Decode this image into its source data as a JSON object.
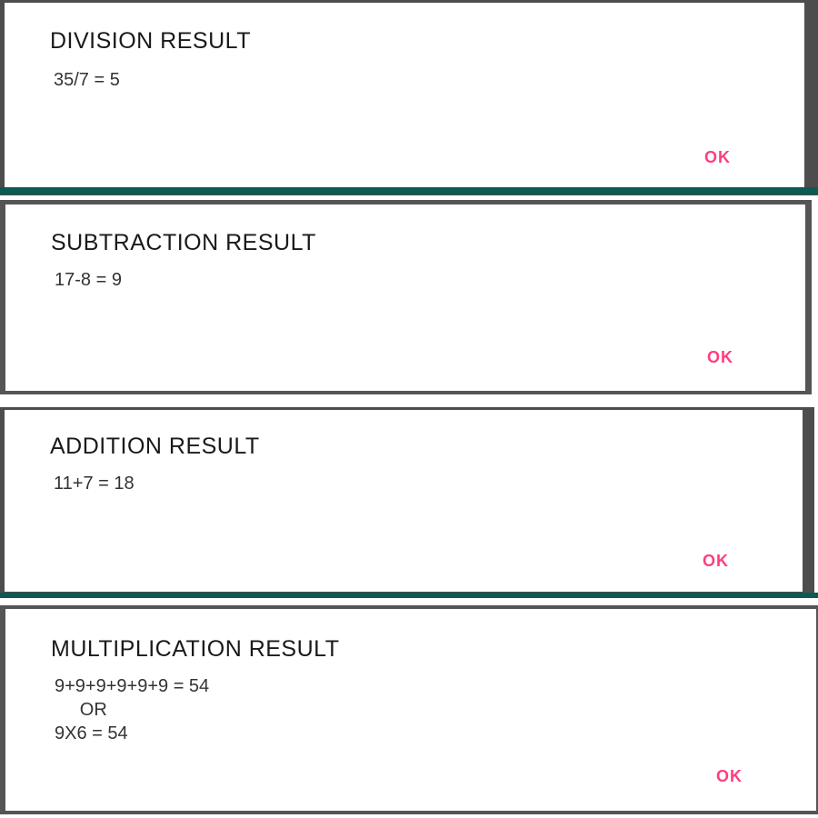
{
  "accent_color": "#ff3d7f",
  "frame_color": "#0b5a55",
  "dialogs": [
    {
      "title": "DIVISION RESULT",
      "message": "35/7 = 5",
      "ok_label": "OK"
    },
    {
      "title": "SUBTRACTION RESULT",
      "message": "17-8 = 9",
      "ok_label": "OK"
    },
    {
      "title": "ADDITION RESULT",
      "message": "11+7 = 18",
      "ok_label": "OK"
    },
    {
      "title": "MULTIPLICATION RESULT",
      "message": "9+9+9+9+9+9 = 54\n     OR\n9X6 = 54",
      "ok_label": "OK"
    }
  ]
}
